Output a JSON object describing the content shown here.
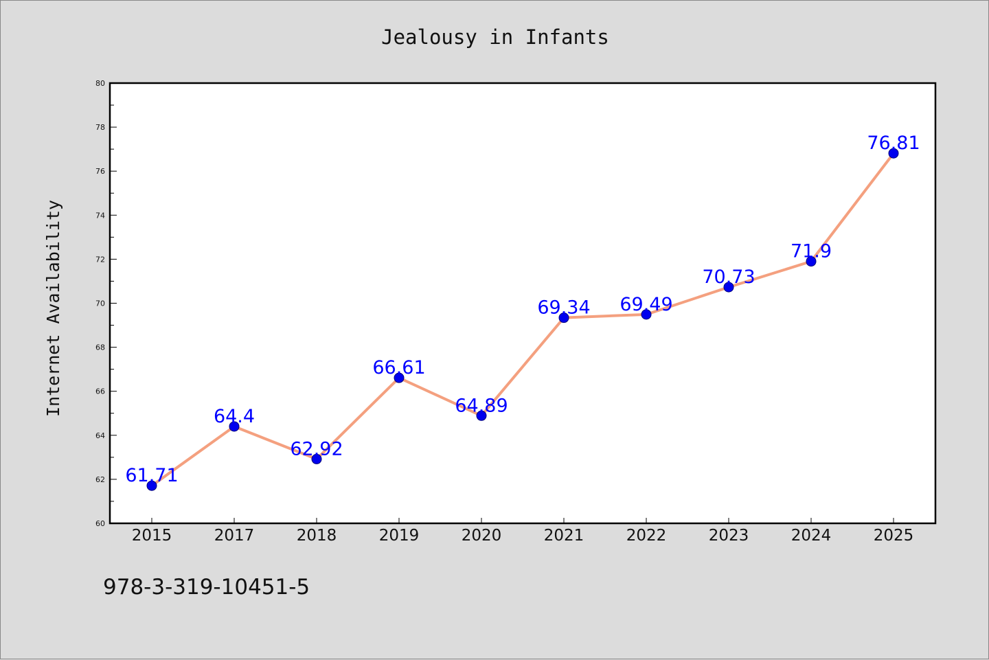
{
  "chart_data": {
    "type": "line",
    "title": "Jealousy in Infants",
    "xlabel": "",
    "ylabel": "Internet Availability",
    "categories": [
      "2015",
      "2017",
      "2018",
      "2019",
      "2020",
      "2021",
      "2022",
      "2023",
      "2024",
      "2025"
    ],
    "series": [
      {
        "values": [
          61.71,
          64.4,
          62.92,
          66.61,
          64.89,
          69.34,
          69.49,
          70.73,
          71.9,
          76.81
        ],
        "data_labels": [
          "61.71",
          "64.4",
          "62.92",
          "66.61",
          "64.89",
          "69.34",
          "69.49",
          "70.73",
          "71.9",
          "76.81"
        ]
      }
    ],
    "ylim": [
      60,
      80
    ],
    "yticks": [
      "60",
      "62",
      "64",
      "66",
      "68",
      "70",
      "72",
      "74",
      "76",
      "78",
      "80"
    ],
    "grid": false,
    "legend": "none",
    "colors": {
      "line": "#f4a07f",
      "marker": "#0000ee",
      "data_label": "#0000ff",
      "figure_bg": "#dcdcdc",
      "plot_bg": "#ffffff"
    }
  },
  "footer_text": "978-3-319-10451-5"
}
